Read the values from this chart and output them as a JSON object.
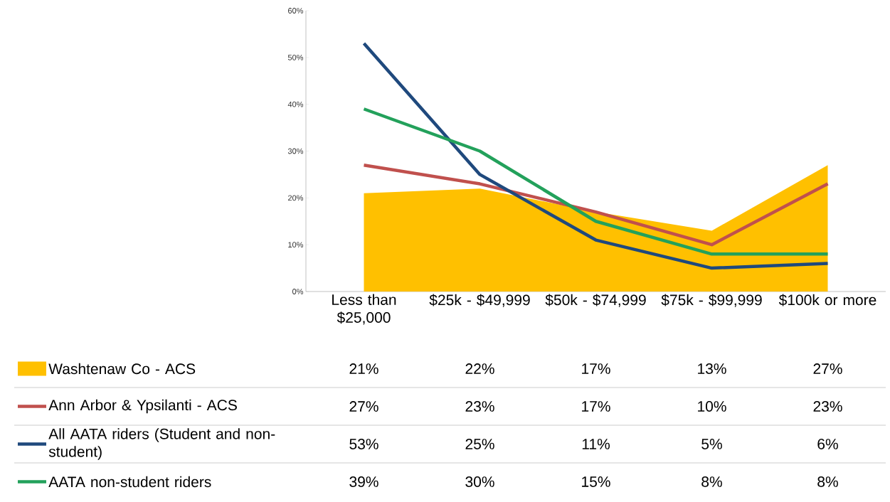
{
  "chart_data": {
    "type": "line",
    "categories": [
      "Less than $25,000",
      "$25k - $49,999",
      "$50k - $74,999",
      "$75k - $99,999",
      "$100k or more"
    ],
    "ylim": [
      0,
      60
    ],
    "yticks": [
      {
        "value": 0,
        "label": "0%"
      },
      {
        "value": 10,
        "label": "10%"
      },
      {
        "value": 20,
        "label": "20%"
      },
      {
        "value": 30,
        "label": "30%"
      },
      {
        "value": 40,
        "label": "40%"
      },
      {
        "value": 50,
        "label": "50%"
      },
      {
        "value": 60,
        "label": "60%"
      }
    ],
    "legend": "bottom",
    "series": [
      {
        "name": "Washtenaw Co - ACS",
        "type": "area",
        "color": "#ffc000",
        "values": [
          21,
          22,
          17,
          13,
          27
        ],
        "value_labels": [
          "21%",
          "22%",
          "17%",
          "13%",
          "27%"
        ]
      },
      {
        "name": "Ann Arbor & Ypsilanti - ACS",
        "color": "#c0504d",
        "values": [
          27,
          23,
          17,
          10,
          23
        ],
        "value_labels": [
          "27%",
          "23%",
          "17%",
          "10%",
          "23%"
        ]
      },
      {
        "name": "All AATA riders (Student and non-student)",
        "color": "#1f497d",
        "values": [
          53,
          25,
          11,
          5,
          6
        ],
        "value_labels": [
          "53%",
          "25%",
          "11%",
          "5%",
          "6%"
        ]
      },
      {
        "name": "AATA non-student riders",
        "color": "#23a15b",
        "values": [
          39,
          30,
          15,
          8,
          8
        ],
        "value_labels": [
          "39%",
          "30%",
          "15%",
          "8%",
          "8%"
        ]
      }
    ]
  }
}
